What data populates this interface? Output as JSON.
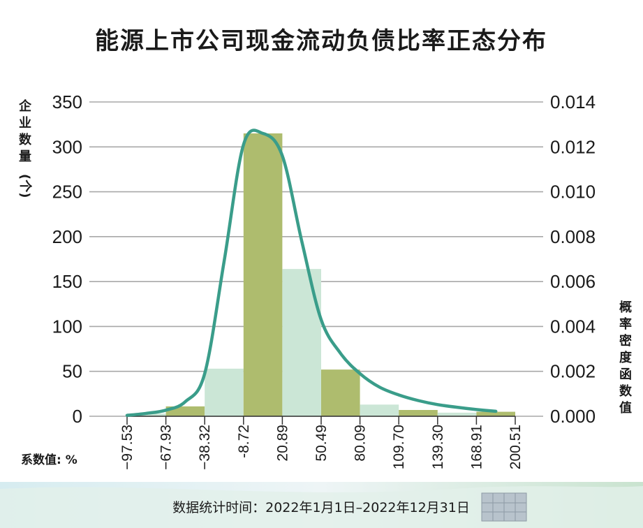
{
  "chart_data": {
    "type": "bar",
    "title": "能源上市公司现金流动负债比率正态分布",
    "ylabel": "企业数量(个)",
    "y2label": "概率密度函数值",
    "x_unit_label": "系数值: %",
    "footer": "数据统计时间：2022年1月1日–2022年12月31日",
    "x_ticks": [
      "−97.53",
      "−67.93",
      "−38.32",
      "-8.72",
      "20.89",
      "50.49",
      "80.09",
      "109.70",
      "139.30",
      "168.91",
      "200.51"
    ],
    "y_ticks": [
      "0",
      "50",
      "100",
      "150",
      "200",
      "250",
      "300",
      "350"
    ],
    "y2_ticks": [
      "0.000",
      "0.002",
      "0.004",
      "0.006",
      "0.008",
      "0.010",
      "0.012",
      "0.014"
    ],
    "ylim": [
      0,
      350
    ],
    "y2lim": [
      0,
      0.014
    ],
    "grid": true,
    "bins": [
      {
        "from": -97.53,
        "to": -67.93,
        "count": 3
      },
      {
        "from": -67.93,
        "to": -38.32,
        "count": 11
      },
      {
        "from": -38.32,
        "to": -8.72,
        "count": 53
      },
      {
        "from": -8.72,
        "to": 20.89,
        "count": 315
      },
      {
        "from": 20.89,
        "to": 50.49,
        "count": 164
      },
      {
        "from": 50.49,
        "to": 80.09,
        "count": 52
      },
      {
        "from": 80.09,
        "to": 109.7,
        "count": 13
      },
      {
        "from": 109.7,
        "to": 139.3,
        "count": 7
      },
      {
        "from": 139.3,
        "to": 168.91,
        "count": 4
      },
      {
        "from": 168.91,
        "to": 200.51,
        "count": 5
      }
    ],
    "density_curve": {
      "x": [
        -97.53,
        -82.7,
        -67.93,
        -53.1,
        -38.32,
        -23.5,
        -8.72,
        6.1,
        20.89,
        35.7,
        50.49,
        65.3,
        80.09,
        94.9,
        109.7,
        124.5,
        139.3,
        154.1,
        168.91,
        184.7
      ],
      "y": [
        4e-05,
        0.00013,
        0.00027,
        0.00065,
        0.0019,
        0.0069,
        0.0121,
        0.0126,
        0.0116,
        0.0078,
        0.0043,
        0.0028,
        0.0019,
        0.0013,
        0.00095,
        0.0007,
        0.00052,
        0.0004,
        0.0003,
        0.00022
      ]
    },
    "colors": {
      "bar_dark": "#aebc6e",
      "bar_light": "#cbe6d6",
      "curve": "#3a9d8a",
      "grid": "#a8a8a8"
    }
  }
}
